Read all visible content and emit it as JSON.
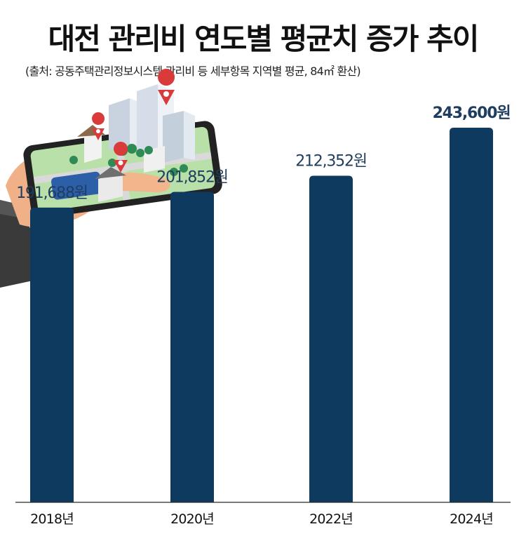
{
  "title": "대전 관리비 연도별 평균치 증가 추이",
  "subtitle": "(출처: 공동주택관리정보시스템 관리비 등 세부항목 지역별 평균, 84㎡ 환산)",
  "colors": {
    "bar": "#0f3a5f",
    "value_label": "#1f3d5f",
    "axis": "#2b2b2b"
  },
  "illustration": "hand-holding-smartphone-with-city-map-icon",
  "chart_data": {
    "type": "bar",
    "categories": [
      "2018년",
      "2020년",
      "2022년",
      "2024년"
    ],
    "values": [
      191688,
      201852,
      212352,
      243600
    ],
    "value_labels": [
      "191,688원",
      "201,852원",
      "212,352원",
      "243,600원"
    ],
    "title": "대전 관리비 연도별 평균치 증가 추이",
    "xlabel": "",
    "ylabel": "",
    "ylim": [
      0,
      250000
    ],
    "grid": false,
    "legend": "none"
  }
}
